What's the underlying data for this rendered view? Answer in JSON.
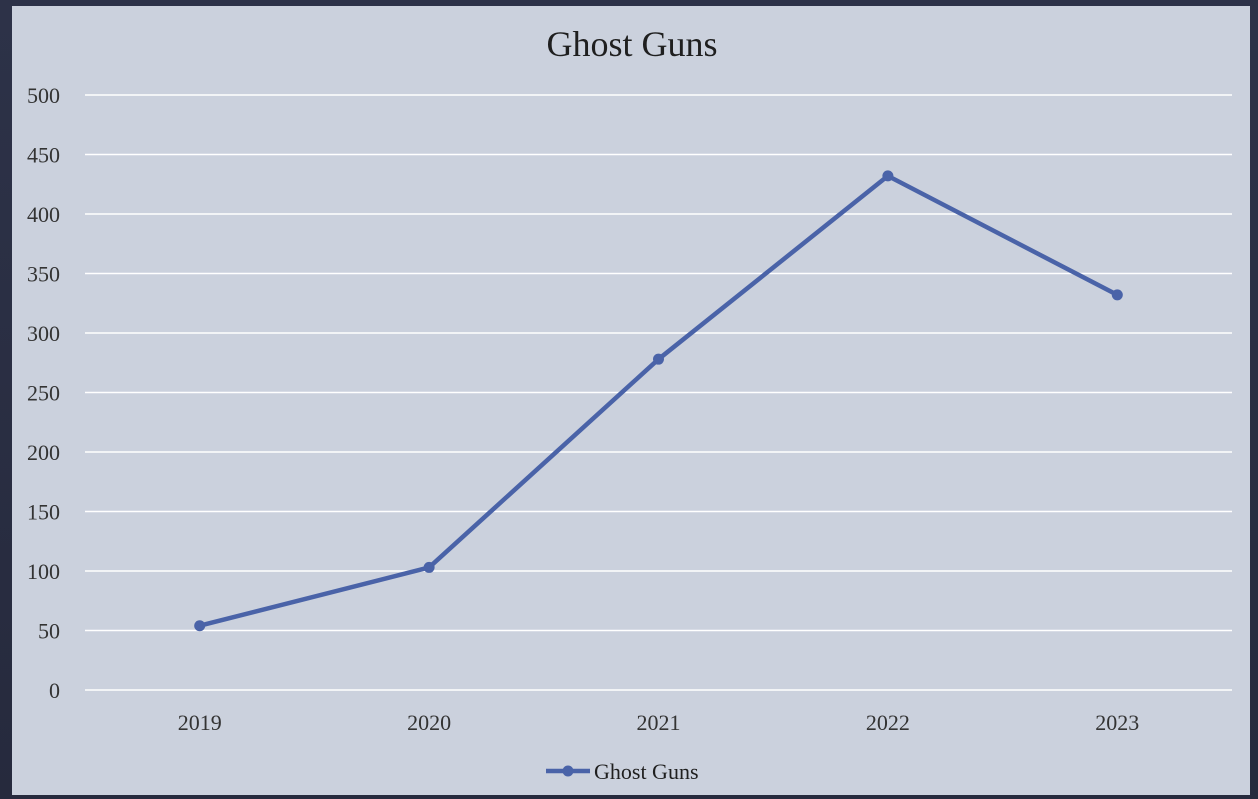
{
  "chart_data": {
    "type": "line",
    "title": "Ghost Guns",
    "categories": [
      "2019",
      "2020",
      "2021",
      "2022",
      "2023"
    ],
    "series": [
      {
        "name": "Ghost Guns",
        "values": [
          54,
          103,
          278,
          432,
          332
        ],
        "color": "#4a63a8"
      }
    ],
    "ylim": [
      0,
      500
    ],
    "yticks": [
      "0",
      "50",
      "100",
      "150",
      "200",
      "250",
      "300",
      "350",
      "400",
      "450",
      "500"
    ],
    "grid": true,
    "legend_position": "bottom"
  }
}
